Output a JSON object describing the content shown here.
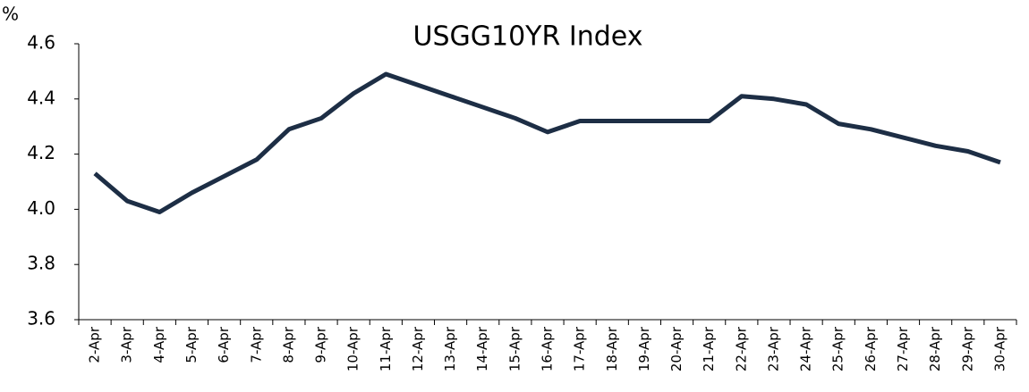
{
  "chart_data": {
    "type": "line",
    "title": "USGG10YR Index",
    "y_label": "%",
    "categories": [
      "2-Apr",
      "3-Apr",
      "4-Apr",
      "5-Apr",
      "6-Apr",
      "7-Apr",
      "8-Apr",
      "9-Apr",
      "10-Apr",
      "11-Apr",
      "12-Apr",
      "13-Apr",
      "14-Apr",
      "15-Apr",
      "16-Apr",
      "17-Apr",
      "18-Apr",
      "19-Apr",
      "20-Apr",
      "21-Apr",
      "22-Apr",
      "23-Apr",
      "24-Apr",
      "25-Apr",
      "26-Apr",
      "27-Apr",
      "28-Apr",
      "29-Apr",
      "30-Apr"
    ],
    "values": [
      4.13,
      4.03,
      3.99,
      4.06,
      4.12,
      4.18,
      4.29,
      4.33,
      4.42,
      4.49,
      4.45,
      4.41,
      4.37,
      4.33,
      4.28,
      4.32,
      4.32,
      4.32,
      4.32,
      4.32,
      4.41,
      4.4,
      4.38,
      4.31,
      4.29,
      4.26,
      4.23,
      4.21,
      4.17
    ],
    "color": "#1d2e45",
    "ylim": [
      3.6,
      4.6
    ],
    "yticks": [
      3.6,
      3.8,
      {
        "value": 4,
        "label": "4.0"
      },
      4.2,
      4.4,
      4.6
    ],
    "grid": false
  }
}
